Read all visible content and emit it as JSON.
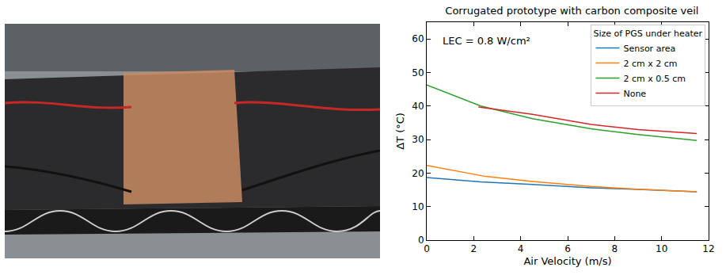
{
  "chart_data": {
    "type": "line",
    "title": "Corrugated prototype with carbon composite veil",
    "x_label": "Air Velocity (m/s)",
    "y_label": "ΔT (°C)",
    "annotation": "LEC = 0.8 W/cm²",
    "legend_title": "Size of PGS under heater",
    "legend": "upper right",
    "grid": false,
    "xlim": [
      0,
      12
    ],
    "xticks": [
      0,
      2,
      4,
      6,
      8,
      10,
      12
    ],
    "ylim": [
      0,
      65
    ],
    "yticks": [
      0,
      10,
      20,
      30,
      40,
      50,
      60
    ],
    "series": [
      {
        "name": "Sensor area",
        "color": "#1f77b4",
        "x": [
          0,
          2.3,
          4.5,
          7,
          9,
          11.5
        ],
        "values": [
          18.7,
          17.4,
          16.6,
          15.6,
          15.1,
          14.4
        ]
      },
      {
        "name": "2 cm x 2 cm",
        "color": "#ff7f0e",
        "x": [
          0,
          2.5,
          4.5,
          7,
          9,
          11.5
        ],
        "values": [
          22.3,
          19.0,
          17.5,
          16.0,
          15.2,
          14.4
        ]
      },
      {
        "name": "2 cm x 0.5 cm",
        "color": "#2ca02c",
        "x": [
          0,
          2.3,
          4.5,
          7,
          9,
          11.5
        ],
        "values": [
          46.3,
          40.0,
          36.2,
          33.2,
          31.5,
          29.7
        ]
      },
      {
        "name": "None",
        "color": "#d62728",
        "x": [
          2.2,
          4.5,
          7,
          9,
          11.5
        ],
        "values": [
          39.7,
          37.5,
          34.5,
          33.0,
          31.8
        ]
      }
    ]
  }
}
